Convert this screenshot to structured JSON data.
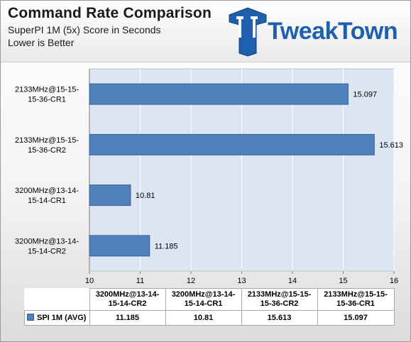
{
  "header": {
    "title": "Command  Rate Comparison",
    "subtitle": "SuperPI 1M (5x) Score in Seconds",
    "note": "Lower is Better",
    "logo_text": "TweakTown"
  },
  "colors": {
    "bar": "#4f81bd",
    "bar_edge": "#365f91",
    "plot_bg": "#dce6f2",
    "grid": "#ffffff",
    "brand": "#1e5fae"
  },
  "icons": {
    "logo": "tweaktown-logo-icon"
  },
  "chart_data": {
    "type": "bar",
    "orientation": "horizontal",
    "title": "Command  Rate Comparison",
    "subtitle": "SuperPI 1M (5x) Score in Seconds",
    "categories": [
      "2133MHz@15-15-15-36-CR1",
      "2133MHz@15-15-15-36-CR2",
      "3200MHz@13-14-15-14-CR1",
      "3200MHz@13-14-15-14-CR2"
    ],
    "category_lines": [
      [
        "2133MHz@15-15-",
        "15-36-CR1"
      ],
      [
        "2133MHz@15-15-",
        "15-36-CR2"
      ],
      [
        "3200MHz@13-14-",
        "15-14-CR1"
      ],
      [
        "3200MHz@13-14-",
        "15-14-CR2"
      ]
    ],
    "series": [
      {
        "name": "SPI 1M (AVG)",
        "values": [
          15.097,
          15.613,
          10.81,
          11.185
        ]
      }
    ],
    "value_labels": [
      "15.097",
      "15.613",
      "10.81",
      "11.185"
    ],
    "xlim": [
      10,
      16
    ],
    "xticks": [
      "10",
      "11",
      "12",
      "13",
      "14",
      "15",
      "16"
    ],
    "grid": true,
    "legend": "data-table",
    "table": {
      "columns": [
        [
          "3200MHz@13-14-",
          "15-14-CR2"
        ],
        [
          "3200MHz@13-14-",
          "15-14-CR1"
        ],
        [
          "2133MHz@15-15-",
          "15-36-CR2"
        ],
        [
          "2133MHz@15-15-",
          "15-36-CR1"
        ]
      ],
      "series_label": "SPI 1M (AVG)",
      "values": [
        "11.185",
        "10.81",
        "15.613",
        "15.097"
      ]
    }
  }
}
